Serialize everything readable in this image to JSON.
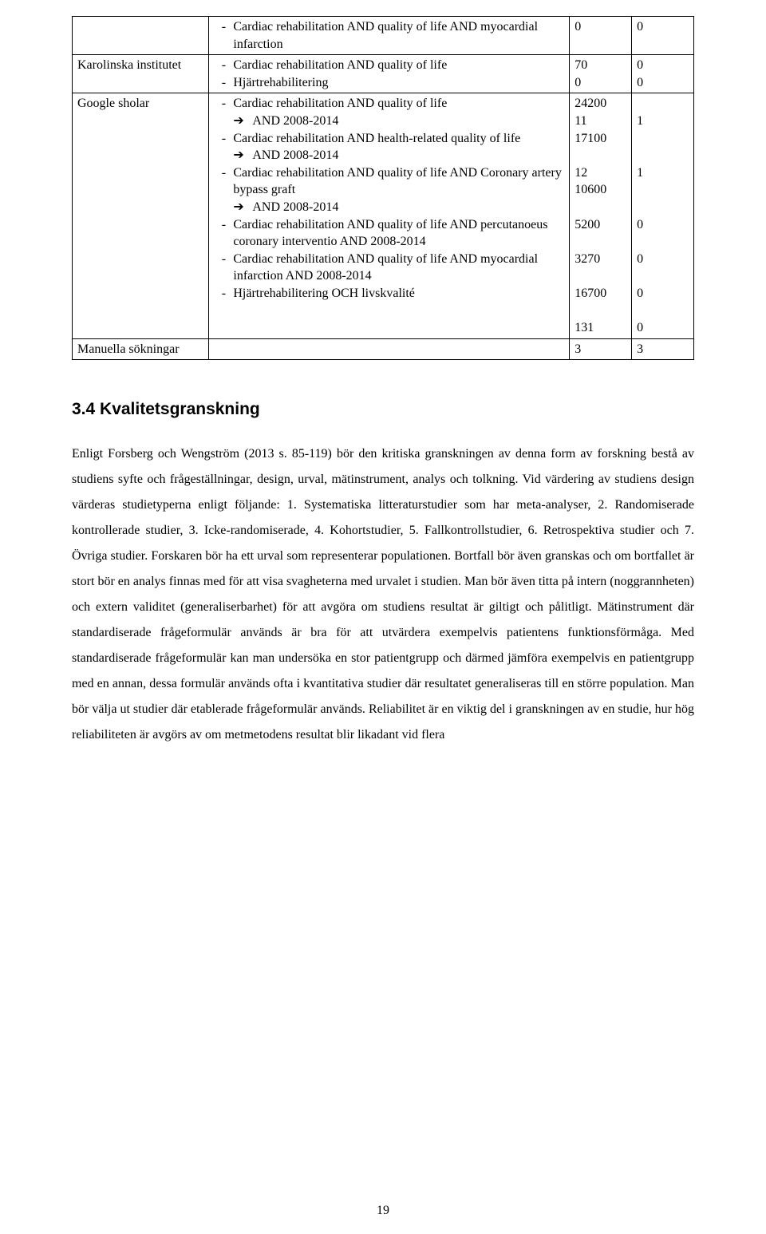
{
  "table": {
    "row0": {
      "label": "",
      "item1": "Cardiac rehabilitation AND quality of life AND myocardial infarction",
      "n1": "0",
      "n2": "0"
    },
    "row1": {
      "label": "Karolinska institutet",
      "item1": "Cardiac rehabilitation AND quality of life",
      "item2": "Hjärtrehabilitering",
      "n1a": "70",
      "n1b": "0",
      "n2a": "0",
      "n2b": "0"
    },
    "row2": {
      "label": "Google sholar",
      "i1": "Cardiac rehabilitation AND quality of life",
      "a1": "AND 2008-2014",
      "i2": "Cardiac rehabilitation AND health-related quality of life",
      "a2": "AND 2008-2014",
      "i3": "Cardiac rehabilitation AND quality of life AND Coronary artery bypass graft",
      "a3": "AND 2008-2014",
      "i4": "Cardiac rehabilitation AND quality of life AND percutanoeus coronary interventio AND 2008-2014",
      "i5": "Cardiac rehabilitation AND quality of life AND myocardial infarction AND 2008-2014",
      "i6": "Hjärtrehabilitering OCH livskvalité",
      "c1": {
        "v1": "24200",
        "v2": "11",
        "v3": "17100",
        "v4": "",
        "v5": "12",
        "v6": "10600",
        "v7": "",
        "v8": "5200",
        "v9": "",
        "v10": "3270",
        "v11": "",
        "v12": "16700",
        "v13": "",
        "v14": "131"
      },
      "c2": {
        "v1": "",
        "v2": "1",
        "v3": "",
        "v4": "",
        "v5": "1",
        "v6": "",
        "v7": "",
        "v8": "0",
        "v9": "",
        "v10": "0",
        "v11": "",
        "v12": "0",
        "v13": "",
        "v14": "0"
      }
    },
    "row3": {
      "label": "Manuella sökningar",
      "n1": "3",
      "n2": "3"
    }
  },
  "heading": "3.4  Kvalitetsgranskning",
  "para": "Enligt Forsberg och Wengström (2013 s. 85-119) bör den kritiska granskningen av denna form av forskning bestå av studiens syfte och frågeställningar, design, urval, mätinstrument, analys och tolkning. Vid värdering av studiens design värderas studietyperna enligt följande: 1. Systematiska litteraturstudier som har meta-analyser, 2. Randomiserade kontrollerade studier, 3. Icke-randomiserade, 4. Kohortstudier, 5. Fallkontrollstudier, 6. Retrospektiva studier och 7. Övriga studier. Forskaren bör ha ett urval som representerar populationen. Bortfall bör även granskas och om bortfallet är stort bör en analys finnas med för att visa svagheterna med urvalet i studien. Man bör även titta på intern (noggrannheten) och extern validitet (generaliserbarhet) för att avgöra om studiens resultat är giltigt och pålitligt. Mätinstrument där standardiserade frågeformulär används är bra för att utvärdera exempelvis patientens funktionsförmåga. Med standardiserade frågeformulär kan man undersöka en stor patientgrupp och därmed jämföra exempelvis en patientgrupp med en annan, dessa formulär används ofta i kvantitativa studier där resultatet generaliseras till en större population. Man bör välja ut studier där etablerade frågeformulär används. Reliabilitet är en viktig del i granskningen av en studie, hur hög reliabiliteten är avgörs av om metmetodens resultat blir likadant vid flera",
  "pageNum": "19"
}
